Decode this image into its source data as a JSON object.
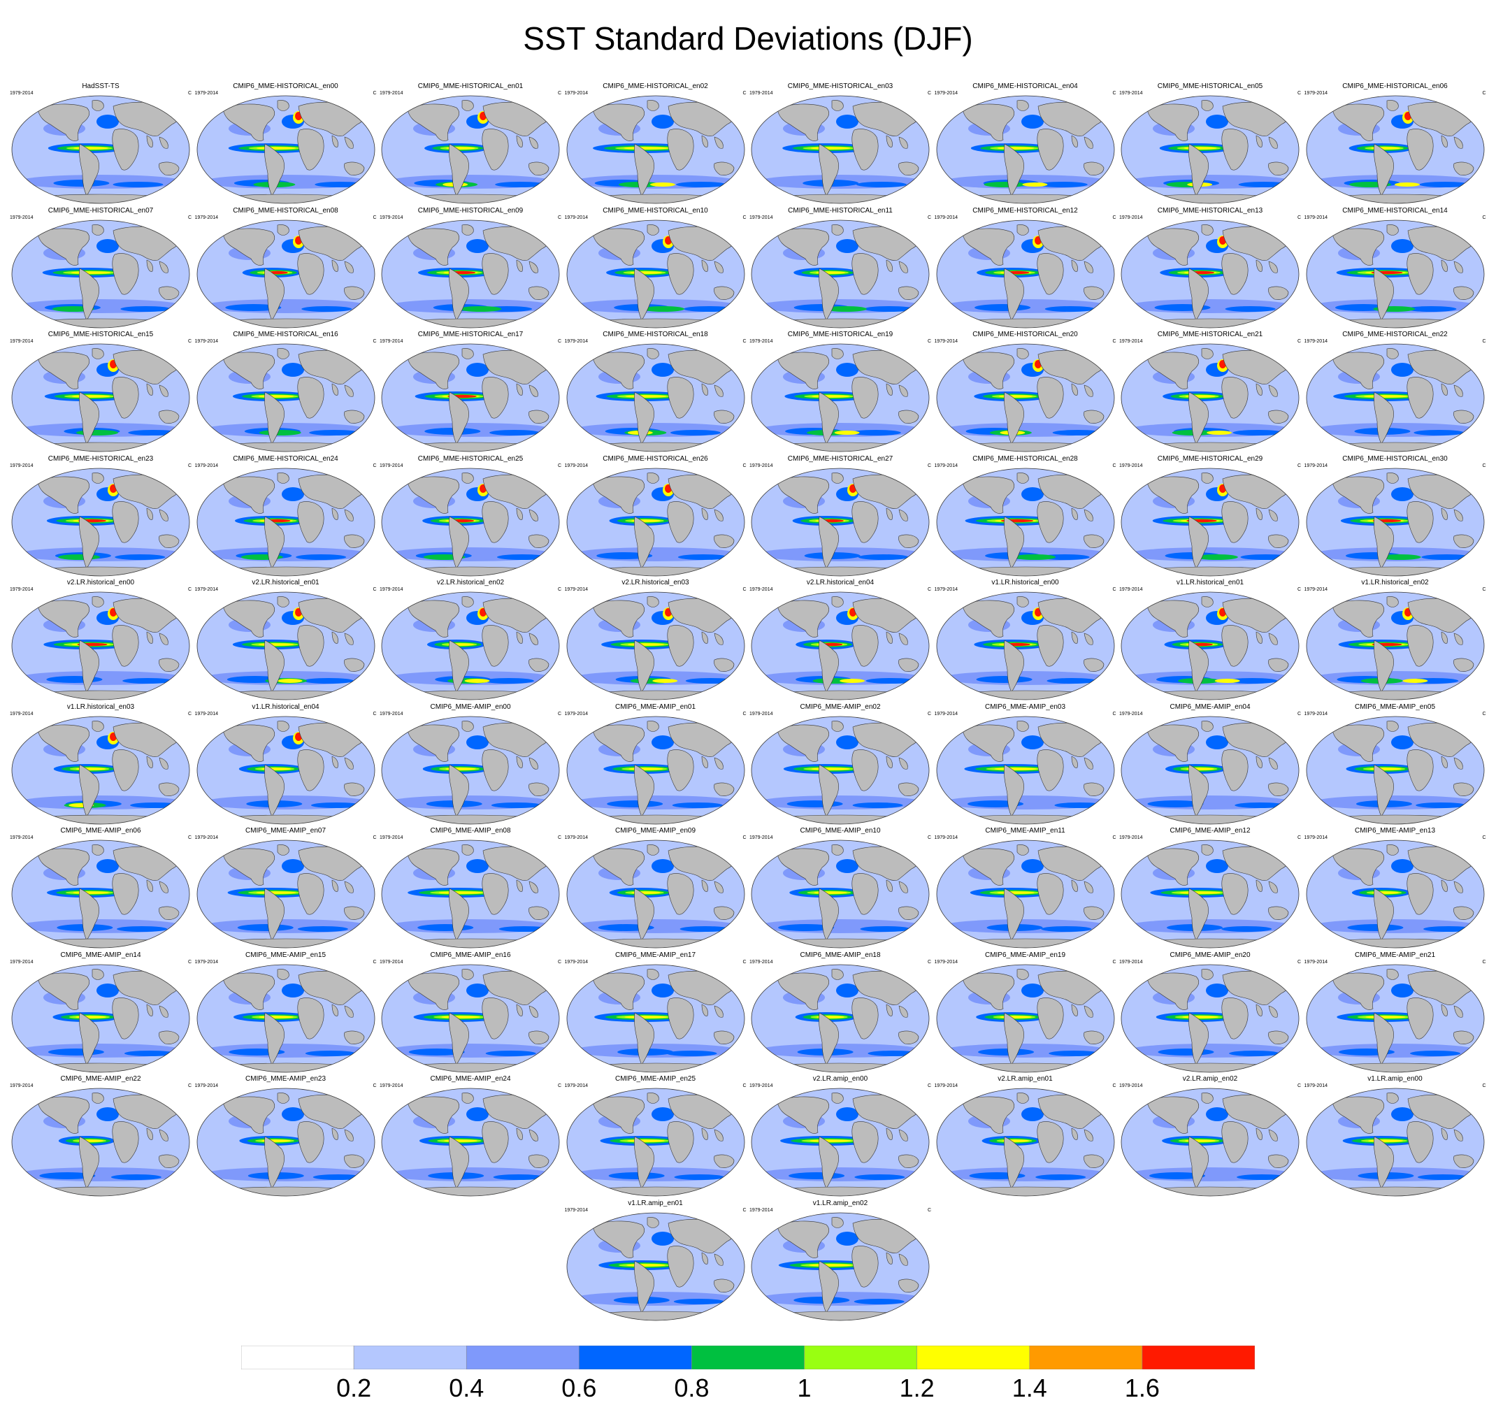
{
  "title": "SST Standard Deviations (DJF)",
  "panel_left_label": "1979-2014",
  "panel_right_label": "C",
  "chart_data": {
    "type": "heatmap",
    "title": "SST Standard Deviations (DJF)",
    "projection": "robinson global map",
    "panels": [
      "HadSST-TS",
      "CMIP6_MME-HISTORICAL_en00",
      "CMIP6_MME-HISTORICAL_en01",
      "CMIP6_MME-HISTORICAL_en02",
      "CMIP6_MME-HISTORICAL_en03",
      "CMIP6_MME-HISTORICAL_en04",
      "CMIP6_MME-HISTORICAL_en05",
      "CMIP6_MME-HISTORICAL_en06",
      "CMIP6_MME-HISTORICAL_en07",
      "CMIP6_MME-HISTORICAL_en08",
      "CMIP6_MME-HISTORICAL_en09",
      "CMIP6_MME-HISTORICAL_en10",
      "CMIP6_MME-HISTORICAL_en11",
      "CMIP6_MME-HISTORICAL_en12",
      "CMIP6_MME-HISTORICAL_en13",
      "CMIP6_MME-HISTORICAL_en14",
      "CMIP6_MME-HISTORICAL_en15",
      "CMIP6_MME-HISTORICAL_en16",
      "CMIP6_MME-HISTORICAL_en17",
      "CMIP6_MME-HISTORICAL_en18",
      "CMIP6_MME-HISTORICAL_en19",
      "CMIP6_MME-HISTORICAL_en20",
      "CMIP6_MME-HISTORICAL_en21",
      "CMIP6_MME-HISTORICAL_en22",
      "CMIP6_MME-HISTORICAL_en23",
      "CMIP6_MME-HISTORICAL_en24",
      "CMIP6_MME-HISTORICAL_en25",
      "CMIP6_MME-HISTORICAL_en26",
      "CMIP6_MME-HISTORICAL_en27",
      "CMIP6_MME-HISTORICAL_en28",
      "CMIP6_MME-HISTORICAL_en29",
      "CMIP6_MME-HISTORICAL_en30",
      "v2.LR.historical_en00",
      "v2.LR.historical_en01",
      "v2.LR.historical_en02",
      "v2.LR.historical_en03",
      "v2.LR.historical_en04",
      "v1.LR.historical_en00",
      "v1.LR.historical_en01",
      "v1.LR.historical_en02",
      "v1.LR.historical_en03",
      "v1.LR.historical_en04",
      "CMIP6_MME-AMIP_en00",
      "CMIP6_MME-AMIP_en01",
      "CMIP6_MME-AMIP_en02",
      "CMIP6_MME-AMIP_en03",
      "CMIP6_MME-AMIP_en04",
      "CMIP6_MME-AMIP_en05",
      "CMIP6_MME-AMIP_en06",
      "CMIP6_MME-AMIP_en07",
      "CMIP6_MME-AMIP_en08",
      "CMIP6_MME-AMIP_en09",
      "CMIP6_MME-AMIP_en10",
      "CMIP6_MME-AMIP_en11",
      "CMIP6_MME-AMIP_en12",
      "CMIP6_MME-AMIP_en13",
      "CMIP6_MME-AMIP_en14",
      "CMIP6_MME-AMIP_en15",
      "CMIP6_MME-AMIP_en16",
      "CMIP6_MME-AMIP_en17",
      "CMIP6_MME-AMIP_en18",
      "CMIP6_MME-AMIP_en19",
      "CMIP6_MME-AMIP_en20",
      "CMIP6_MME-AMIP_en21",
      "CMIP6_MME-AMIP_en22",
      "CMIP6_MME-AMIP_en23",
      "CMIP6_MME-AMIP_en24",
      "CMIP6_MME-AMIP_en25",
      "v2.LR.amip_en00",
      "v2.LR.amip_en01",
      "v2.LR.amip_en02",
      "v1.LR.amip_en00",
      "v1.LR.amip_en01",
      "v1.LR.amip_en02"
    ],
    "colorbar": {
      "levels": [
        0.2,
        0.4,
        0.6,
        0.8,
        1,
        1.2,
        1.4,
        1.6
      ],
      "tick_labels": [
        "0.2",
        "0.4",
        "0.6",
        "0.8",
        "1",
        "1.2",
        "1.4",
        "1.6"
      ],
      "colors": [
        "#ffffff",
        "#b4c7fe",
        "#7f99fb",
        "#0066ff",
        "#00c040",
        "#99ff11",
        "#ffff00",
        "#ff9a00",
        "#ff1a00"
      ]
    }
  },
  "colors": {
    "land": "#bcbcbc",
    "ocean_base": "#b4c7fe"
  }
}
